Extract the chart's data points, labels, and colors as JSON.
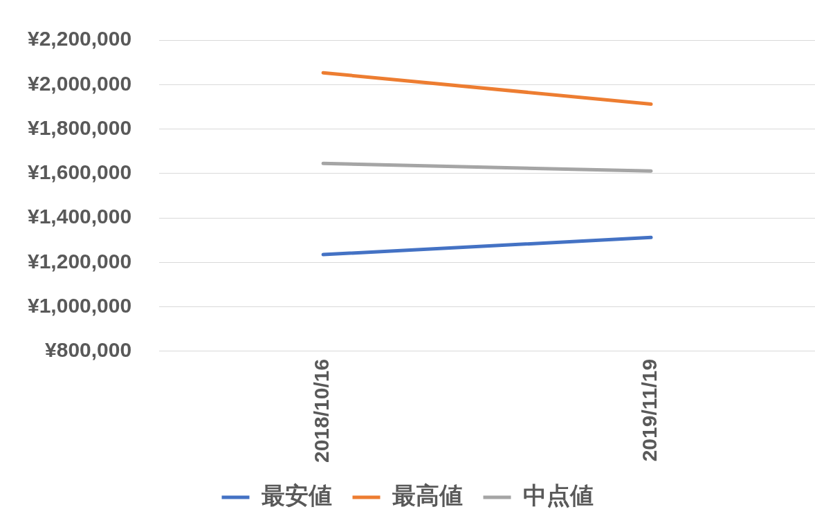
{
  "chart_data": {
    "type": "line",
    "categories": [
      "2018/10/16",
      "2019/11/19"
    ],
    "series": [
      {
        "name": "最安値",
        "color": "#4472c4",
        "values": [
          1235000,
          1312000
        ]
      },
      {
        "name": "最高値",
        "color": "#ed7d31",
        "values": [
          2053000,
          1912000
        ]
      },
      {
        "name": "中点値",
        "color": "#a5a5a5",
        "values": [
          1645000,
          1611000
        ]
      }
    ],
    "ylim": [
      800000,
      2200000
    ],
    "yticks": [
      {
        "value": 800000,
        "label": "¥800,000"
      },
      {
        "value": 1000000,
        "label": "¥1,000,000"
      },
      {
        "value": 1200000,
        "label": "¥1,200,000"
      },
      {
        "value": 1400000,
        "label": "¥1,400,000"
      },
      {
        "value": 1600000,
        "label": "¥1,600,000"
      },
      {
        "value": 1800000,
        "label": "¥1,800,000"
      },
      {
        "value": 2000000,
        "label": "¥2,000,000"
      },
      {
        "value": 2200000,
        "label": "¥2,200,000"
      }
    ],
    "grid": "y",
    "legend": "bottom",
    "marker": "none",
    "line_style": "solid"
  }
}
